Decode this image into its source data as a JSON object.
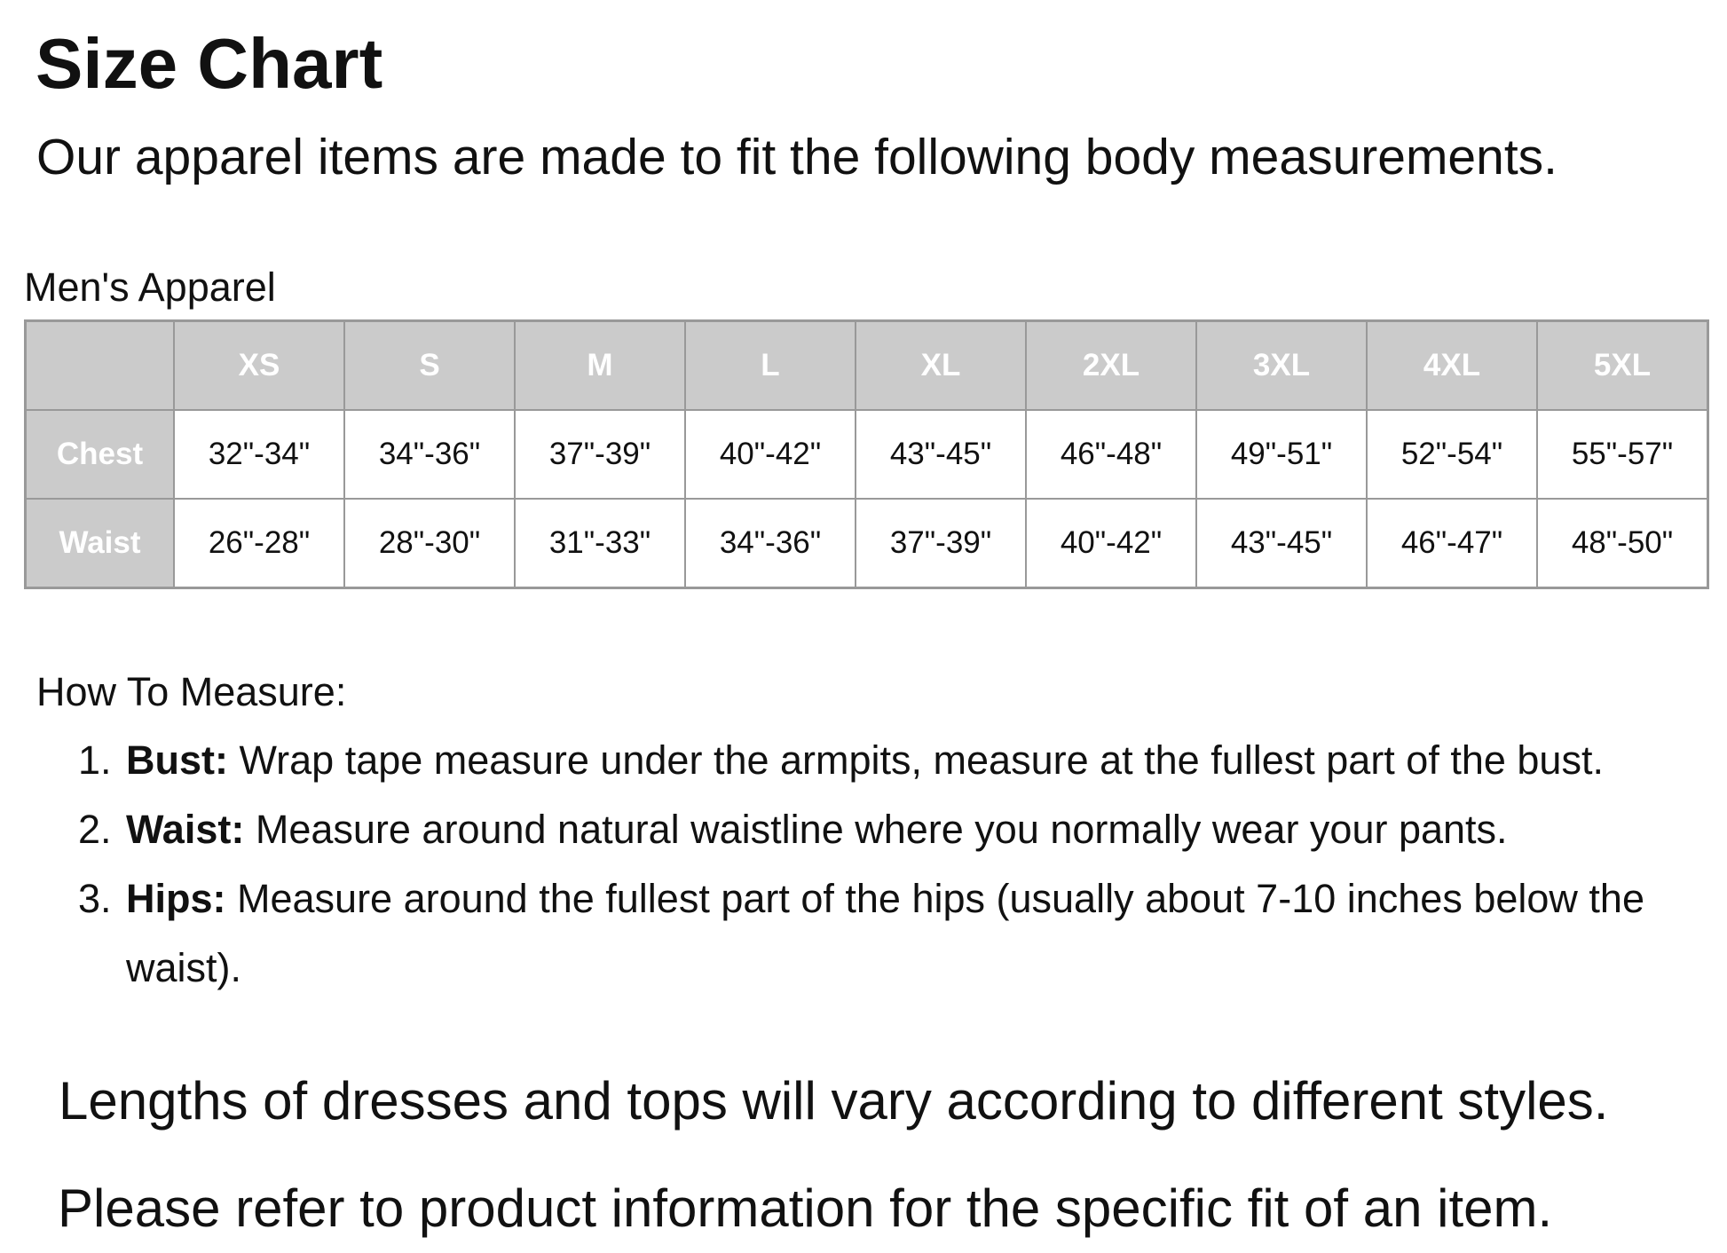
{
  "title": "Size Chart",
  "subtitle": "Our apparel items are made to fit the following body measurements.",
  "section": "Men's Apparel",
  "colors": {
    "header_bg": "#cbcbcb",
    "header_text": "#ffffff",
    "border": "#999999"
  },
  "table": {
    "corner": "",
    "sizes": [
      "XS",
      "S",
      "M",
      "L",
      "XL",
      "2XL",
      "3XL",
      "4XL",
      "5XL"
    ],
    "rows": [
      {
        "label": "Chest",
        "values": [
          "32\"-34\"",
          "34\"-36\"",
          "37\"-39\"",
          "40\"-42\"",
          "43\"-45\"",
          "46\"-48\"",
          "49\"-51\"",
          "52\"-54\"",
          "55\"-57\""
        ]
      },
      {
        "label": "Waist",
        "values": [
          "26\"-28\"",
          "28\"-30\"",
          "31\"-33\"",
          "34\"-36\"",
          "37\"-39\"",
          "40\"-42\"",
          "43\"-45\"",
          "46\"-47\"",
          "48\"-50\""
        ]
      }
    ]
  },
  "how_to": {
    "heading": "How To Measure:",
    "items": [
      {
        "num": "1.",
        "term": "Bust:",
        "text": " Wrap tape measure under the armpits, measure at the fullest part of the bust."
      },
      {
        "num": "2.",
        "term": "Waist:",
        "text": " Measure around natural waistline where you normally wear your pants."
      },
      {
        "num": "3.",
        "term": "Hips:",
        "text": " Measure around the fullest part of the hips (usually about 7-10 inches below the waist)."
      }
    ]
  },
  "notes": [
    "Lengths of dresses and tops will vary according to different styles.",
    "Please refer to product information for the specific fit of an item."
  ]
}
